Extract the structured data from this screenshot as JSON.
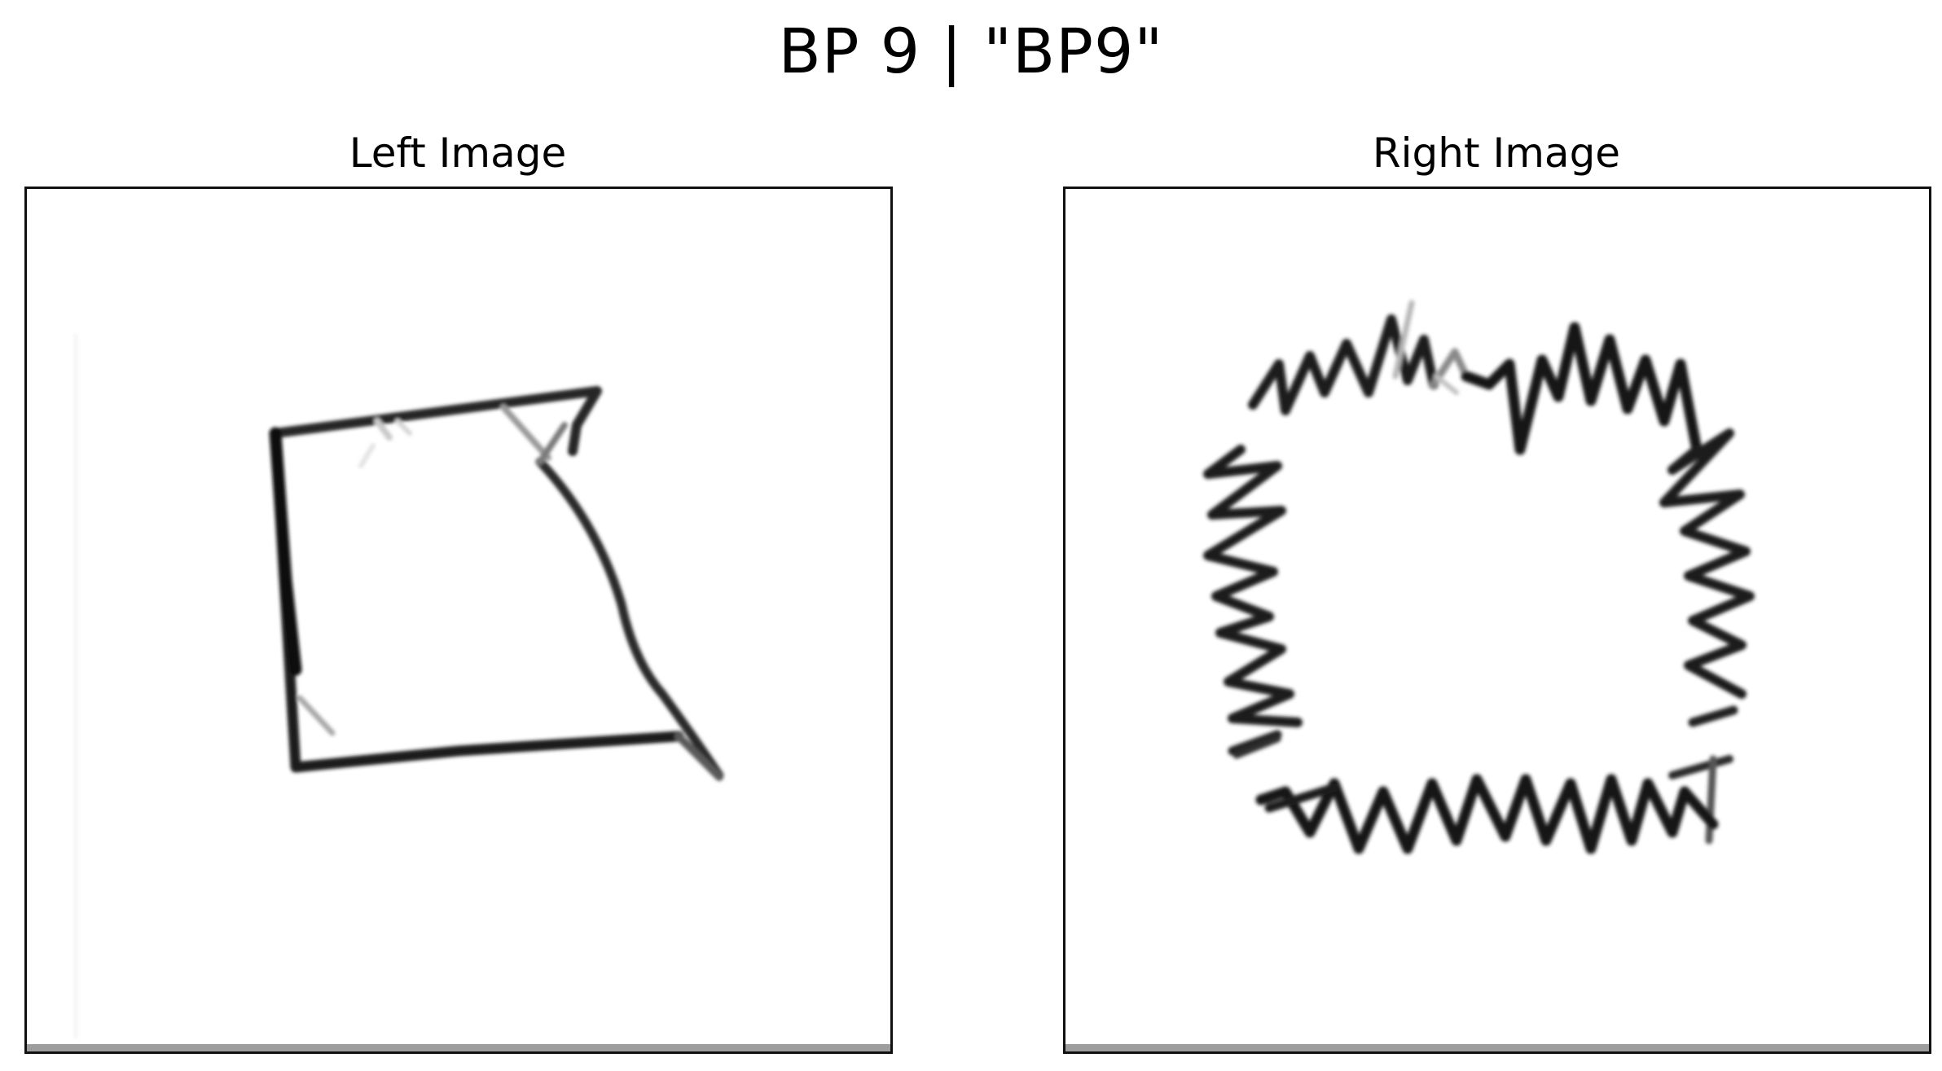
{
  "figure": {
    "title": "BP 9 | \"BP9\""
  },
  "panels": [
    {
      "title": "Left Image",
      "content": "hand-drawn-quadrilateral"
    },
    {
      "title": "Right Image",
      "content": "hand-drawn-zigzag-ring"
    }
  ],
  "colors": {
    "background": "#ffffff",
    "stroke": "#1a1a1a",
    "frame": "#111111",
    "bottom_shade": "#9e9e9e"
  }
}
